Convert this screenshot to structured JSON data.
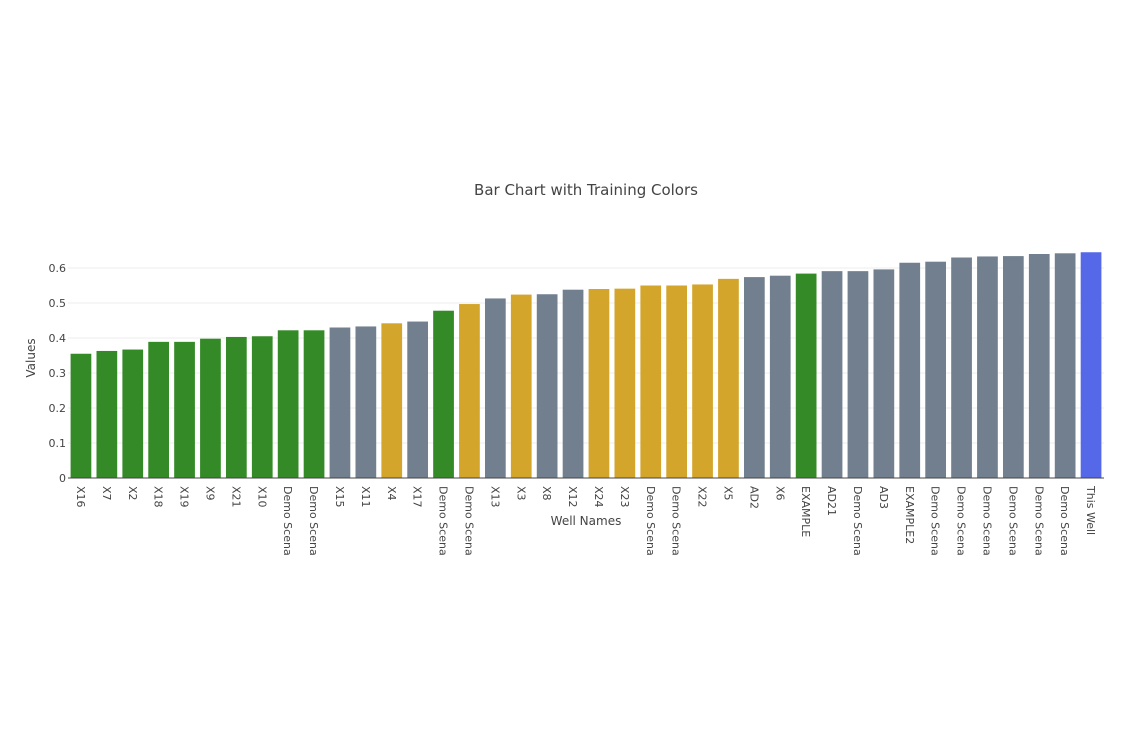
{
  "chart_data": {
    "type": "bar",
    "title": "Bar Chart with Training Colors",
    "xlabel": "Well Names",
    "ylabel": "Values",
    "ylim": [
      0,
      0.6
    ],
    "yticks": [
      0,
      0.1,
      0.2,
      0.3,
      0.4,
      0.5,
      0.6
    ],
    "ytick_labels": [
      "0",
      "0.1",
      "0.2",
      "0.3",
      "0.4",
      "0.5",
      "0.6"
    ],
    "grid": true,
    "legend": "none",
    "colors": {
      "green": "#338a26",
      "gold": "#d4a52b",
      "slate": "#717f8f",
      "blue": "#5468e8"
    },
    "categories": [
      "X16",
      "X7",
      "X2",
      "X18",
      "X19",
      "X9",
      "X21",
      "X10",
      "Demo Scena",
      "Demo Scena",
      "X15",
      "X11",
      "X4",
      "X17",
      "Demo Scena",
      "Demo Scena",
      "X13",
      "X3",
      "X8",
      "X12",
      "X24",
      "X23",
      "Demo Scena",
      "Demo Scena",
      "X22",
      "X5",
      "AD2",
      "X6",
      "EXAMPLE",
      "AD21",
      "Demo Scena",
      "AD3",
      "EXAMPLE2",
      "Demo Scena",
      "Demo Scena",
      "Demo Scena",
      "Demo Scena",
      "Demo Scena",
      "Demo Scena",
      "This Well"
    ],
    "values": [
      0.355,
      0.363,
      0.367,
      0.389,
      0.389,
      0.398,
      0.403,
      0.405,
      0.422,
      0.422,
      0.43,
      0.433,
      0.442,
      0.447,
      0.478,
      0.497,
      0.513,
      0.524,
      0.525,
      0.538,
      0.54,
      0.541,
      0.55,
      0.55,
      0.553,
      0.569,
      0.574,
      0.578,
      0.584,
      0.591,
      0.591,
      0.596,
      0.615,
      0.618,
      0.63,
      0.633,
      0.634,
      0.64,
      0.642,
      0.645
    ],
    "bar_colors": [
      "green",
      "green",
      "green",
      "green",
      "green",
      "green",
      "green",
      "green",
      "green",
      "green",
      "slate",
      "slate",
      "gold",
      "slate",
      "green",
      "gold",
      "slate",
      "gold",
      "slate",
      "slate",
      "gold",
      "gold",
      "gold",
      "gold",
      "gold",
      "gold",
      "slate",
      "slate",
      "green",
      "slate",
      "slate",
      "slate",
      "slate",
      "slate",
      "slate",
      "slate",
      "slate",
      "slate",
      "slate",
      "blue"
    ]
  }
}
